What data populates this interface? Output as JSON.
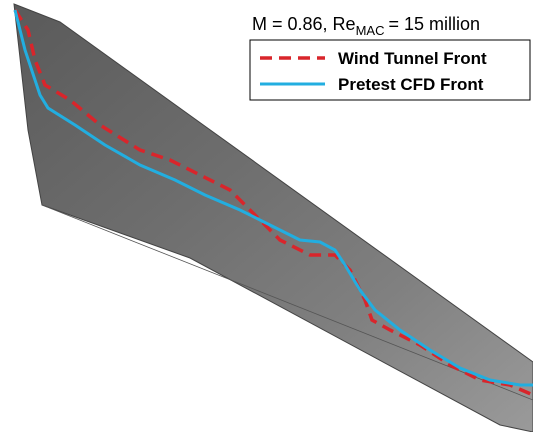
{
  "title": {
    "prefix": "M = 0.86, Re",
    "subscript": "MAC",
    "suffix": "= 15 million"
  },
  "legend": {
    "items": [
      {
        "label": "Wind Tunnel Front"
      },
      {
        "label": "Pretest CFD Front"
      }
    ]
  }
}
